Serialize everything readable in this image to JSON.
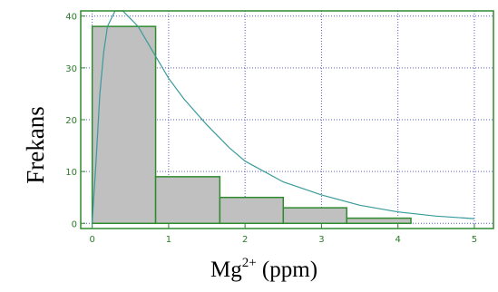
{
  "chart_data": {
    "type": "bar",
    "xlabel_base": "Mg",
    "xlabel_sup": "2+",
    "xlabel_unit": " (ppm)",
    "ylabel": "Frekans",
    "xlim": [
      -0.15,
      5.25
    ],
    "ylim": [
      -1,
      41
    ],
    "xticks": [
      "0",
      "1",
      "2",
      "3",
      "4",
      "5"
    ],
    "yticks": [
      "0",
      "10",
      "20",
      "30",
      "40"
    ],
    "grid": true,
    "bins": [
      {
        "x0": 0.0,
        "x1": 0.83,
        "value": 38
      },
      {
        "x0": 0.83,
        "x1": 1.67,
        "value": 9
      },
      {
        "x0": 1.67,
        "x1": 2.5,
        "value": 5
      },
      {
        "x0": 2.5,
        "x1": 3.33,
        "value": 3
      },
      {
        "x0": 3.33,
        "x1": 4.17,
        "value": 1
      },
      {
        "x0": 4.17,
        "x1": 5.0,
        "value": 0
      }
    ],
    "fit_curve": {
      "type": "line",
      "points": [
        [
          0.0,
          0
        ],
        [
          0.05,
          12
        ],
        [
          0.1,
          25
        ],
        [
          0.15,
          33
        ],
        [
          0.2,
          38
        ],
        [
          0.3,
          41
        ],
        [
          0.4,
          41
        ],
        [
          0.6,
          38
        ],
        [
          0.8,
          33
        ],
        [
          1.0,
          28
        ],
        [
          1.2,
          24
        ],
        [
          1.5,
          19
        ],
        [
          1.8,
          14.5
        ],
        [
          2.0,
          12
        ],
        [
          2.5,
          8
        ],
        [
          3.0,
          5.5
        ],
        [
          3.5,
          3.5
        ],
        [
          4.0,
          2.2
        ],
        [
          4.5,
          1.4
        ],
        [
          5.0,
          0.9
        ]
      ]
    },
    "colors": {
      "bar_fill": "#c0c0c0",
      "bar_stroke": "#2e8b2e",
      "curve": "#3a9a9a",
      "grid": "#5a5ac8",
      "frame": "#2e8b2e",
      "tick_label": "#2a7a2a"
    }
  }
}
